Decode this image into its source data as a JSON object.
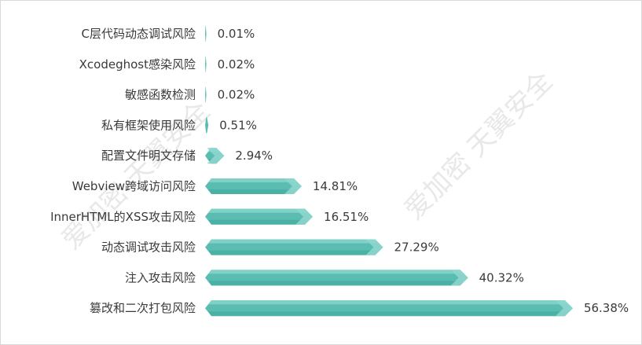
{
  "watermark": {
    "text": "爱加密 天翼安全"
  },
  "colors": {
    "bar_main": "#5bbdb2",
    "bar_top": "#7fd0c6",
    "bar_bottom": "#3fa79b",
    "bar_tip": "#8dd6cd",
    "text": "#3a3a3a"
  },
  "chart_data": {
    "type": "bar",
    "orientation": "horizontal",
    "categories": [
      "C层代码动态调试风险",
      "Xcodeghost感染风险",
      "敏感函数检测",
      "私有框架使用风险",
      "配置文件明文存储",
      "Webview跨域访问风险",
      "InnerHTML的XSS攻击风险",
      "动态调试攻击风险",
      "注入攻击风险",
      "篡改和二次打包风险"
    ],
    "values": [
      0.01,
      0.02,
      0.02,
      0.51,
      2.94,
      14.81,
      16.51,
      27.29,
      40.32,
      56.38
    ],
    "value_labels": [
      "0.01%",
      "0.02%",
      "0.02%",
      "0.51%",
      "2.94%",
      "14.81%",
      "16.51%",
      "27.29%",
      "40.32%",
      "56.38%"
    ],
    "xlim": [
      0,
      60
    ],
    "unit": "%",
    "grid": false,
    "legend": "none"
  }
}
